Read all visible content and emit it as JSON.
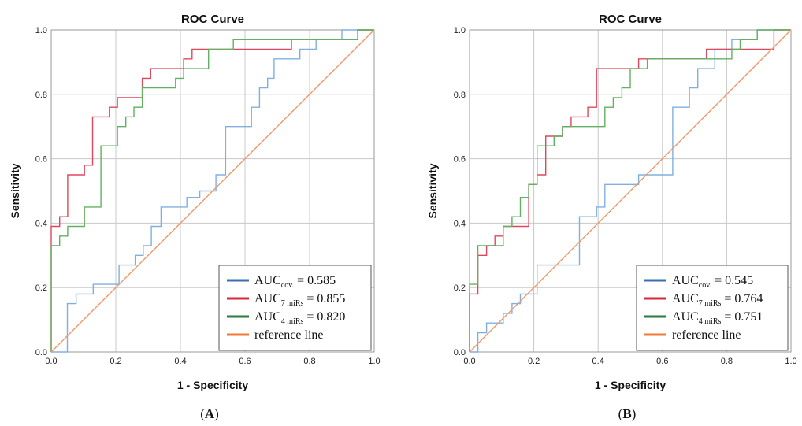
{
  "chart_data": [
    {
      "type": "line",
      "panel_label": "A",
      "title": "ROC Curve",
      "xlabel": "1 - Specificity",
      "ylabel": "Sensitivity",
      "xlim": [
        0,
        1
      ],
      "ylim": [
        0,
        1
      ],
      "xticks": [
        "0.0",
        "0.2",
        "0.4",
        "0.6",
        "0.8",
        "1.0"
      ],
      "yticks": [
        "0.0",
        "0.2",
        "0.4",
        "0.6",
        "0.8",
        "1.0"
      ],
      "grid": true,
      "legend_position": "bottom-right",
      "series": [
        {
          "name": "AUC cov. = 0.585",
          "legend_main": "AUC",
          "legend_sub": "cov.",
          "legend_value": " = 0.585",
          "color": "#7fb0e0",
          "legend_color": "#3a6fb4",
          "x": [
            0,
            0.05,
            0.05,
            0.077,
            0.077,
            0.13,
            0.13,
            0.21,
            0.21,
            0.26,
            0.26,
            0.285,
            0.285,
            0.31,
            0.31,
            0.34,
            0.34,
            0.365,
            0.365,
            0.42,
            0.42,
            0.46,
            0.46,
            0.51,
            0.51,
            0.54,
            0.54,
            0.62,
            0.62,
            0.645,
            0.645,
            0.67,
            0.67,
            0.69,
            0.69,
            0.77,
            0.77,
            0.82,
            0.82,
            0.9,
            0.9,
            0.97,
            0.97,
            1.0
          ],
          "y": [
            0,
            0,
            0.15,
            0.15,
            0.18,
            0.18,
            0.21,
            0.21,
            0.27,
            0.27,
            0.3,
            0.3,
            0.33,
            0.33,
            0.39,
            0.39,
            0.45,
            0.45,
            0.45,
            0.45,
            0.48,
            0.48,
            0.5,
            0.5,
            0.55,
            0.55,
            0.7,
            0.7,
            0.76,
            0.76,
            0.82,
            0.82,
            0.85,
            0.85,
            0.91,
            0.91,
            0.94,
            0.94,
            0.97,
            0.97,
            1.0,
            1.0,
            1.0,
            1.0
          ]
        },
        {
          "name": "AUC 7 miRs = 0.855",
          "legend_main": "AUC",
          "legend_sub": "7 miRs",
          "legend_value": " = 0.855",
          "color": "#e0475e",
          "legend_color": "#d8283b",
          "x": [
            0,
            0,
            0.026,
            0.026,
            0.051,
            0.051,
            0.103,
            0.103,
            0.128,
            0.128,
            0.18,
            0.18,
            0.205,
            0.205,
            0.282,
            0.282,
            0.308,
            0.308,
            0.41,
            0.41,
            0.436,
            0.436,
            0.564,
            0.564,
            0.744,
            0.744,
            0.949,
            0.949,
            1.0
          ],
          "y": [
            0,
            0.39,
            0.39,
            0.42,
            0.42,
            0.55,
            0.55,
            0.58,
            0.58,
            0.73,
            0.73,
            0.76,
            0.76,
            0.79,
            0.79,
            0.85,
            0.85,
            0.88,
            0.88,
            0.91,
            0.91,
            0.94,
            0.94,
            0.94,
            0.94,
            0.97,
            0.97,
            1.0,
            1.0
          ]
        },
        {
          "name": "AUC 4 miRs = 0.820",
          "legend_main": "AUC",
          "legend_sub": "4 miRs",
          "legend_value": " = 0.820",
          "color": "#62b061",
          "legend_color": "#2c7a3c",
          "x": [
            0,
            0,
            0.026,
            0.026,
            0.051,
            0.051,
            0.103,
            0.103,
            0.154,
            0.154,
            0.205,
            0.205,
            0.231,
            0.231,
            0.256,
            0.256,
            0.282,
            0.282,
            0.308,
            0.308,
            0.385,
            0.385,
            0.41,
            0.41,
            0.487,
            0.487,
            0.564,
            0.564,
            0.949,
            0.949,
            1.0
          ],
          "y": [
            0,
            0.33,
            0.33,
            0.36,
            0.36,
            0.39,
            0.39,
            0.45,
            0.45,
            0.64,
            0.64,
            0.7,
            0.7,
            0.73,
            0.73,
            0.76,
            0.76,
            0.82,
            0.82,
            0.82,
            0.82,
            0.85,
            0.85,
            0.88,
            0.88,
            0.94,
            0.94,
            0.97,
            0.97,
            1.0,
            1.0
          ]
        },
        {
          "name": "reference line",
          "legend_main": "reference line",
          "legend_sub": "",
          "legend_value": "",
          "color": "#f2986b",
          "legend_color": "#f07a3a",
          "x": [
            0,
            1
          ],
          "y": [
            0,
            1
          ]
        }
      ]
    },
    {
      "type": "line",
      "panel_label": "B",
      "title": "ROC Curve",
      "xlabel": "1 - Specificity",
      "ylabel": "Sensitivity",
      "xlim": [
        0,
        1
      ],
      "ylim": [
        0,
        1
      ],
      "xticks": [
        "0.0",
        "0.2",
        "0.4",
        "0.6",
        "0.8",
        "1.0"
      ],
      "yticks": [
        "0.0",
        "0.2",
        "0.4",
        "0.6",
        "0.8",
        "1.0"
      ],
      "grid": true,
      "legend_position": "bottom-right",
      "series": [
        {
          "name": "AUC cov. = 0.545",
          "legend_main": "AUC",
          "legend_sub": "cov.",
          "legend_value": " = 0.545",
          "color": "#7fb0e0",
          "legend_color": "#3a6fb4",
          "x": [
            0,
            0.026,
            0.026,
            0.053,
            0.053,
            0.105,
            0.105,
            0.132,
            0.132,
            0.158,
            0.158,
            0.21,
            0.21,
            0.342,
            0.342,
            0.395,
            0.395,
            0.421,
            0.421,
            0.526,
            0.526,
            0.632,
            0.632,
            0.684,
            0.684,
            0.71,
            0.71,
            0.763,
            0.763,
            0.816,
            0.816,
            0.895,
            0.895,
            1.0
          ],
          "y": [
            0,
            0,
            0.06,
            0.06,
            0.09,
            0.09,
            0.12,
            0.12,
            0.15,
            0.15,
            0.18,
            0.18,
            0.27,
            0.27,
            0.42,
            0.42,
            0.45,
            0.45,
            0.52,
            0.52,
            0.55,
            0.55,
            0.76,
            0.76,
            0.82,
            0.82,
            0.88,
            0.88,
            0.94,
            0.94,
            0.97,
            0.97,
            1.0,
            1.0
          ]
        },
        {
          "name": "AUC 7 miRs = 0.764",
          "legend_main": "AUC",
          "legend_sub": "7 miRs",
          "legend_value": " = 0.764",
          "color": "#e0475e",
          "legend_color": "#d8283b",
          "x": [
            0,
            0,
            0.026,
            0.026,
            0.053,
            0.053,
            0.079,
            0.079,
            0.105,
            0.105,
            0.184,
            0.184,
            0.21,
            0.21,
            0.237,
            0.237,
            0.263,
            0.263,
            0.289,
            0.289,
            0.316,
            0.316,
            0.368,
            0.368,
            0.395,
            0.395,
            0.526,
            0.526,
            0.737,
            0.737,
            0.947,
            0.947,
            1.0
          ],
          "y": [
            0,
            0.18,
            0.18,
            0.3,
            0.3,
            0.33,
            0.33,
            0.36,
            0.36,
            0.39,
            0.39,
            0.52,
            0.52,
            0.55,
            0.55,
            0.67,
            0.67,
            0.67,
            0.67,
            0.7,
            0.7,
            0.73,
            0.73,
            0.76,
            0.76,
            0.88,
            0.88,
            0.91,
            0.91,
            0.94,
            0.94,
            1.0,
            1.0
          ]
        },
        {
          "name": "AUC 4 miRs = 0.751",
          "legend_main": "AUC",
          "legend_sub": "4 miRs",
          "legend_value": " = 0.751",
          "color": "#62b061",
          "legend_color": "#2c7a3c",
          "x": [
            0,
            0,
            0.026,
            0.026,
            0.105,
            0.105,
            0.132,
            0.132,
            0.158,
            0.158,
            0.184,
            0.184,
            0.21,
            0.21,
            0.237,
            0.237,
            0.263,
            0.263,
            0.289,
            0.289,
            0.395,
            0.395,
            0.421,
            0.421,
            0.447,
            0.447,
            0.474,
            0.474,
            0.5,
            0.5,
            0.526,
            0.526,
            0.553,
            0.553,
            0.816,
            0.816,
            0.842,
            0.842,
            0.895,
            0.895,
            1.0
          ],
          "y": [
            0,
            0.21,
            0.21,
            0.33,
            0.33,
            0.39,
            0.39,
            0.42,
            0.42,
            0.48,
            0.48,
            0.52,
            0.52,
            0.64,
            0.64,
            0.64,
            0.64,
            0.67,
            0.67,
            0.7,
            0.7,
            0.7,
            0.7,
            0.76,
            0.76,
            0.79,
            0.79,
            0.82,
            0.82,
            0.88,
            0.88,
            0.88,
            0.88,
            0.91,
            0.91,
            0.94,
            0.94,
            0.97,
            0.97,
            1.0,
            1.0
          ]
        },
        {
          "name": "reference line",
          "legend_main": "reference line",
          "legend_sub": "",
          "legend_value": "",
          "color": "#f2986b",
          "legend_color": "#f07a3a",
          "x": [
            0,
            1
          ],
          "y": [
            0,
            1
          ]
        }
      ]
    }
  ]
}
